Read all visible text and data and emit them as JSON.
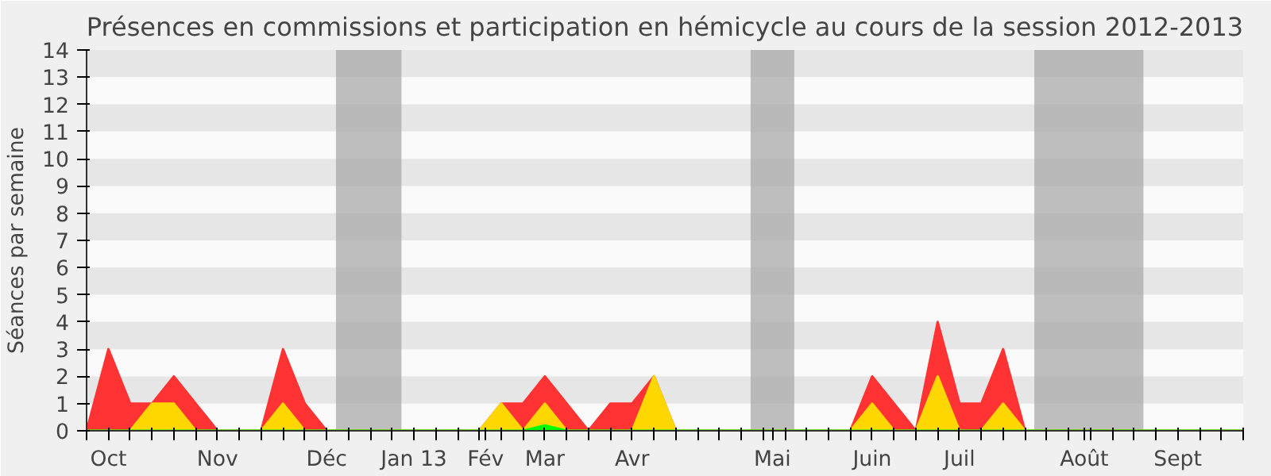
{
  "chart_data": {
    "type": "area",
    "title": "Présences en commissions et participation en hémicycle au cours de la session 2012-2013",
    "ylabel": "Séances par semaine",
    "x": [
      "2012-10-08",
      "2012-10-15",
      "2012-10-22",
      "2012-10-29",
      "2012-11-05",
      "2012-11-12",
      "2012-11-19",
      "2012-11-26",
      "2012-12-03",
      "2012-12-10",
      "2012-12-17",
      "2012-12-24",
      "2012-12-31",
      "2013-01-07",
      "2013-01-14",
      "2013-01-21",
      "2013-01-28",
      "2013-02-04",
      "2013-02-11",
      "2013-02-18",
      "2013-02-25",
      "2013-03-04",
      "2013-03-11",
      "2013-03-18",
      "2013-03-25",
      "2013-04-01",
      "2013-04-08",
      "2013-04-15",
      "2013-04-22",
      "2013-04-29",
      "2013-05-06",
      "2013-05-13",
      "2013-05-20",
      "2013-05-27",
      "2013-06-03",
      "2013-06-10",
      "2013-06-17",
      "2013-06-24",
      "2013-07-01",
      "2013-07-08",
      "2013-07-15",
      "2013-07-22",
      "2013-07-29",
      "2013-08-05",
      "2013-08-12",
      "2013-08-19",
      "2013-08-26",
      "2013-09-02",
      "2013-09-09",
      "2013-09-16",
      "2013-09-23",
      "2013-09-30",
      "2013-10-07",
      "2013-10-14"
    ],
    "series": [
      {
        "color": "#ff3333",
        "values": [
          0,
          3,
          1,
          1,
          2,
          1,
          0,
          0,
          0,
          3,
          1,
          0,
          0,
          0,
          0,
          0,
          0,
          0,
          0,
          1,
          1,
          2,
          1,
          0,
          1,
          1,
          2,
          0,
          0,
          0,
          0,
          0,
          0,
          0,
          0,
          0,
          2,
          1,
          0,
          4,
          1,
          1,
          3,
          0,
          0,
          0,
          0,
          0,
          0,
          0,
          0,
          0,
          0,
          0
        ]
      },
      {
        "color": "#ffd700",
        "values": [
          0,
          0,
          0,
          1,
          1,
          0,
          0,
          0,
          0,
          1,
          0,
          0,
          0,
          0,
          0,
          0,
          0,
          0,
          0,
          1,
          0,
          1,
          0,
          0,
          0,
          0,
          2,
          0,
          0,
          0,
          0,
          0,
          0,
          0,
          0,
          0,
          1,
          0,
          0,
          2,
          0,
          0,
          1,
          0,
          0,
          0,
          0,
          0,
          0,
          0,
          0,
          0,
          0,
          0
        ]
      },
      {
        "color": "#00ff00",
        "values": [
          0,
          0,
          0,
          0,
          0,
          0,
          0,
          0,
          0,
          0,
          0,
          0,
          0,
          0,
          0,
          0,
          0,
          0,
          0,
          0,
          0,
          0.2,
          0,
          0,
          0,
          0,
          0,
          0,
          0,
          0,
          0,
          0,
          0,
          0,
          0,
          0,
          0,
          0,
          0,
          0,
          0,
          0,
          0,
          0,
          0,
          0,
          0,
          0,
          0,
          0,
          0,
          0,
          0,
          0
        ]
      }
    ],
    "bands": [
      {
        "axis": "x",
        "from": "2012-12-27",
        "to": "2013-01-17",
        "color": "#aaaaaa"
      },
      {
        "axis": "x",
        "from": "2013-05-09",
        "to": "2013-05-23",
        "color": "#aaaaaa"
      },
      {
        "axis": "x",
        "from": "2013-08-08",
        "to": "2013-09-12",
        "color": "#aaaaaa"
      }
    ],
    "xlim": [
      "2012-10-08",
      "2013-10-14"
    ],
    "ylim": [
      0,
      14
    ],
    "yticks": [
      0,
      1,
      2,
      3,
      4,
      5,
      6,
      7,
      8,
      9,
      10,
      11,
      12,
      13,
      14
    ],
    "xticks": [
      {
        "value": "2012-10-15",
        "label": "Oct"
      },
      {
        "value": "2012-11-19",
        "label": "Nov"
      },
      {
        "value": "2012-12-24",
        "label": "Déc"
      },
      {
        "value": "2013-01-21",
        "label": "Jan 13"
      },
      {
        "value": "2013-02-13",
        "label": "Fév"
      },
      {
        "value": "2013-03-04",
        "label": "Mar"
      },
      {
        "value": "2013-04-01",
        "label": "Avr"
      },
      {
        "value": "2013-05-16",
        "label": "Mai"
      },
      {
        "value": "2013-06-17",
        "label": "Juin"
      },
      {
        "value": "2013-07-15",
        "label": "Juil"
      },
      {
        "value": "2013-08-24",
        "label": "Août"
      },
      {
        "value": "2013-09-23",
        "label": "Sept"
      },
      {
        "value": "2012-10-08",
        "label": null
      },
      {
        "value": "2012-10-22",
        "label": null
      },
      {
        "value": "2012-10-29",
        "label": null
      },
      {
        "value": "2012-11-05",
        "label": null
      },
      {
        "value": "2012-11-12",
        "label": null
      },
      {
        "value": "2012-11-26",
        "label": null
      },
      {
        "value": "2012-12-03",
        "label": null
      },
      {
        "value": "2012-12-10",
        "label": null
      },
      {
        "value": "2012-12-17",
        "label": null
      },
      {
        "value": "2012-12-31",
        "label": null
      },
      {
        "value": "2013-01-07",
        "label": null
      },
      {
        "value": "2013-01-14",
        "label": null
      },
      {
        "value": "2013-01-28",
        "label": null
      },
      {
        "value": "2013-02-04",
        "label": null
      },
      {
        "value": "2013-02-11",
        "label": null
      },
      {
        "value": "2013-02-18",
        "label": null
      },
      {
        "value": "2013-02-25",
        "label": null
      },
      {
        "value": "2013-03-11",
        "label": null
      },
      {
        "value": "2013-03-18",
        "label": null
      },
      {
        "value": "2013-03-25",
        "label": null
      },
      {
        "value": "2013-04-08",
        "label": null
      },
      {
        "value": "2013-04-15",
        "label": null
      },
      {
        "value": "2013-04-22",
        "label": null
      },
      {
        "value": "2013-04-29",
        "label": null
      },
      {
        "value": "2013-05-06",
        "label": null
      },
      {
        "value": "2013-05-13",
        "label": null
      },
      {
        "value": "2013-05-20",
        "label": null
      },
      {
        "value": "2013-05-27",
        "label": null
      },
      {
        "value": "2013-06-03",
        "label": null
      },
      {
        "value": "2013-06-10",
        "label": null
      },
      {
        "value": "2013-06-24",
        "label": null
      },
      {
        "value": "2013-07-01",
        "label": null
      },
      {
        "value": "2013-07-08",
        "label": null
      },
      {
        "value": "2013-07-22",
        "label": null
      },
      {
        "value": "2013-07-29",
        "label": null
      },
      {
        "value": "2013-08-05",
        "label": null
      },
      {
        "value": "2013-08-12",
        "label": null
      },
      {
        "value": "2013-08-19",
        "label": null
      },
      {
        "value": "2013-08-26",
        "label": null
      },
      {
        "value": "2013-09-02",
        "label": null
      },
      {
        "value": "2013-09-09",
        "label": null
      },
      {
        "value": "2013-09-16",
        "label": null
      },
      {
        "value": "2013-09-30",
        "label": null
      },
      {
        "value": "2013-10-07",
        "label": null
      },
      {
        "value": "2013-10-14",
        "label": null
      }
    ]
  }
}
